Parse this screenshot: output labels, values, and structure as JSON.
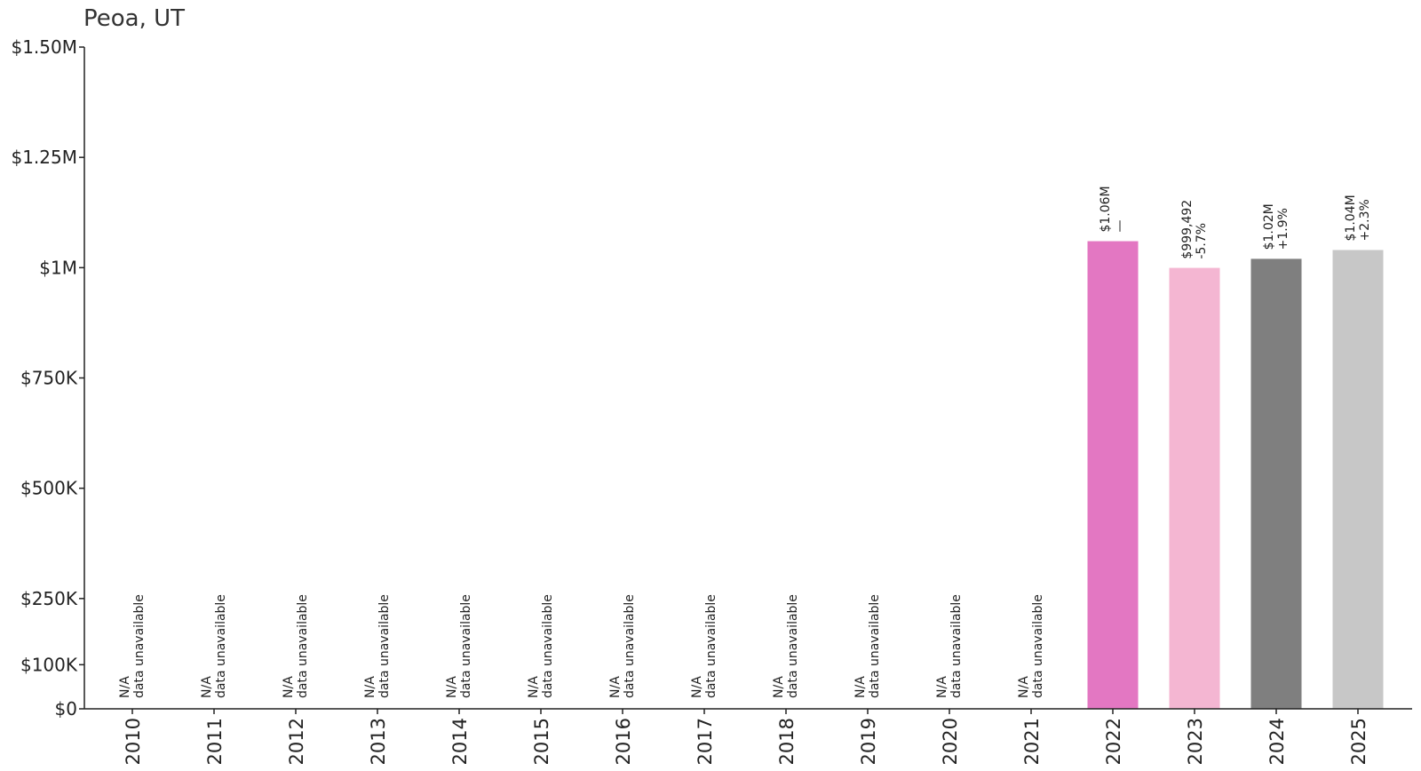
{
  "chart_data": {
    "type": "bar",
    "title": "Peoa, UT",
    "xlabel": "",
    "ylabel": "",
    "ylim": [
      0,
      1500000
    ],
    "yticks": [
      {
        "value": 0,
        "label": "$0"
      },
      {
        "value": 100000,
        "label": "$100K"
      },
      {
        "value": 250000,
        "label": "$250K"
      },
      {
        "value": 500000,
        "label": "$500K"
      },
      {
        "value": 750000,
        "label": "$750K"
      },
      {
        "value": 1000000,
        "label": "$1M"
      },
      {
        "value": 1250000,
        "label": "$1.25M"
      },
      {
        "value": 1500000,
        "label": "$1.50M"
      }
    ],
    "categories": [
      "2010",
      "2011",
      "2012",
      "2013",
      "2014",
      "2015",
      "2016",
      "2017",
      "2018",
      "2019",
      "2020",
      "2021",
      "2022",
      "2023",
      "2024",
      "2025"
    ],
    "values": [
      null,
      null,
      null,
      null,
      null,
      null,
      null,
      null,
      null,
      null,
      null,
      null,
      1060000,
      999492,
      1020000,
      1040000
    ],
    "value_labels": [
      "N/A",
      "N/A",
      "N/A",
      "N/A",
      "N/A",
      "N/A",
      "N/A",
      "N/A",
      "N/A",
      "N/A",
      "N/A",
      "N/A",
      "$1.06M",
      "$999,492",
      "$1.02M",
      "$1.04M"
    ],
    "change_labels": [
      "data unavailable",
      "data unavailable",
      "data unavailable",
      "data unavailable",
      "data unavailable",
      "data unavailable",
      "data unavailable",
      "data unavailable",
      "data unavailable",
      "data unavailable",
      "data unavailable",
      "data unavailable",
      "—",
      "-5.7%",
      "+1.9%",
      "+2.3%"
    ],
    "colors": [
      "#e377c2",
      "#e377c2",
      "#e377c2",
      "#e377c2",
      "#e377c2",
      "#e377c2",
      "#e377c2",
      "#e377c2",
      "#e377c2",
      "#e377c2",
      "#e377c2",
      "#e377c2",
      "#e377c2",
      "#f4b6d2",
      "#7f7f7f",
      "#c7c7c7"
    ],
    "grid": false,
    "legend": "none"
  }
}
